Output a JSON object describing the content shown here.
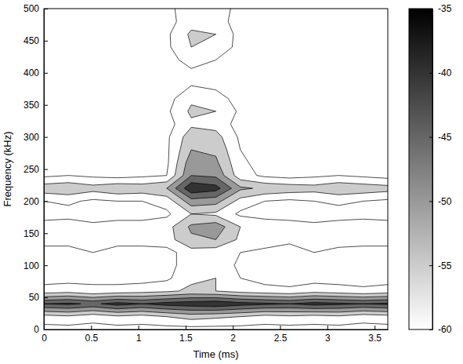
{
  "chart_data": {
    "type": "contour",
    "x_label": "Time (ms)",
    "y_label": "Frequency (kHz)",
    "x": [
      0,
      0.26,
      0.52,
      0.78,
      1.04,
      1.3,
      1.56,
      1.82,
      2.08,
      2.34,
      2.6,
      2.86,
      3.12,
      3.38,
      3.64
    ],
    "y": [
      0,
      20,
      40,
      60,
      80,
      100,
      120,
      140,
      160,
      180,
      200,
      220,
      240,
      260,
      280,
      300,
      320,
      340,
      360,
      380,
      400,
      420,
      440,
      460,
      480,
      500
    ],
    "values": [
      [
        -62,
        -62,
        -62,
        -62,
        -62,
        -62,
        -62,
        -62,
        -62,
        -62,
        -62,
        -62,
        -62,
        -62,
        -62
      ],
      [
        -57,
        -56,
        -58,
        -56,
        -57,
        -55,
        -53,
        -54,
        -55,
        -57,
        -56,
        -57,
        -56,
        -58,
        -57
      ],
      [
        -40,
        -39,
        -41,
        -38,
        -40,
        -38,
        -37,
        -36,
        -38,
        -39,
        -40,
        -38,
        -39,
        -40,
        -39
      ],
      [
        -58,
        -57,
        -59,
        -58,
        -57,
        -56,
        -54,
        -55,
        -57,
        -58,
        -59,
        -57,
        -58,
        -59,
        -58
      ],
      [
        -62,
        -62,
        -61,
        -62,
        -62,
        -61,
        -56,
        -55,
        -60,
        -62,
        -62,
        -62,
        -62,
        -62,
        -62
      ],
      [
        -62,
        -62,
        -62,
        -62,
        -62,
        -62,
        -57,
        -57,
        -61,
        -62,
        -62,
        -62,
        -62,
        -62,
        -62
      ],
      [
        -61,
        -62,
        -60,
        -62,
        -61,
        -62,
        -57,
        -58,
        -60,
        -61,
        -62,
        -60,
        -62,
        -61,
        -62
      ],
      [
        -59,
        -58,
        -60,
        -58,
        -59,
        -57,
        -51,
        -50,
        -56,
        -58,
        -59,
        -58,
        -57,
        -59,
        -58
      ],
      [
        -58,
        -57,
        -59,
        -58,
        -58,
        -57,
        -49,
        -47,
        -55,
        -57,
        -58,
        -59,
        -58,
        -57,
        -58
      ],
      [
        -62,
        -62,
        -62,
        -62,
        -62,
        -61,
        -55,
        -56,
        -61,
        -62,
        -62,
        -62,
        -62,
        -62,
        -62
      ],
      [
        -60,
        -59,
        -61,
        -60,
        -60,
        -58,
        -47,
        -48,
        -57,
        -60,
        -61,
        -60,
        -59,
        -60,
        -61
      ],
      [
        -52,
        -51,
        -53,
        -51,
        -52,
        -50,
        -36,
        -38,
        -49,
        -51,
        -52,
        -53,
        -51,
        -52,
        -53
      ],
      [
        -61,
        -60,
        -61,
        -62,
        -61,
        -60,
        -45,
        -46,
        -58,
        -61,
        -62,
        -61,
        -60,
        -61,
        -62
      ],
      [
        -62,
        -62,
        -62,
        -62,
        -62,
        -61,
        -47,
        -49,
        -59,
        -62,
        -62,
        -62,
        -62,
        -62,
        -62
      ],
      [
        -62,
        -62,
        -62,
        -62,
        -62,
        -61,
        -50,
        -51,
        -60,
        -62,
        -62,
        -62,
        -62,
        -62,
        -62
      ],
      [
        -62,
        -62,
        -62,
        -62,
        -62,
        -61,
        -52,
        -53,
        -61,
        -62,
        -62,
        -62,
        -62,
        -62,
        -62
      ],
      [
        -62,
        -62,
        -62,
        -62,
        -62,
        -62,
        -56,
        -57,
        -62,
        -62,
        -62,
        -62,
        -62,
        -62,
        -62
      ],
      [
        -62,
        -62,
        -62,
        -62,
        -62,
        -61,
        -54,
        -55,
        -61,
        -62,
        -62,
        -62,
        -62,
        -62,
        -62
      ],
      [
        -62,
        -62,
        -62,
        -62,
        -62,
        -62,
        -56,
        -58,
        -62,
        -62,
        -62,
        -62,
        -62,
        -62,
        -62
      ],
      [
        -62,
        -62,
        -62,
        -62,
        -62,
        -62,
        -60,
        -61,
        -62,
        -62,
        -62,
        -62,
        -62,
        -62,
        -62
      ],
      [
        -62,
        -62,
        -62,
        -62,
        -62,
        -62,
        -61,
        -62,
        -62,
        -62,
        -62,
        -62,
        -62,
        -62,
        -62
      ],
      [
        -62,
        -62,
        -62,
        -62,
        -62,
        -62,
        -58,
        -60,
        -62,
        -62,
        -62,
        -62,
        -62,
        -62,
        -62
      ],
      [
        -62,
        -62,
        -62,
        -62,
        -62,
        -61,
        -55,
        -56,
        -62,
        -62,
        -62,
        -62,
        -62,
        -62,
        -62
      ],
      [
        -62,
        -62,
        -62,
        -62,
        -62,
        -61,
        -54,
        -55,
        -62,
        -62,
        -62,
        -62,
        -62,
        -62,
        -62
      ],
      [
        -62,
        -62,
        -62,
        -62,
        -62,
        -62,
        -57,
        -58,
        -62,
        -62,
        -62,
        -62,
        -62,
        -62,
        -62
      ],
      [
        -62,
        -62,
        -62,
        -62,
        -62,
        -62,
        -56,
        -57,
        -62,
        -62,
        -62,
        -62,
        -62,
        -62,
        -62
      ]
    ],
    "xlim": [
      0,
      3.64
    ],
    "ylim": [
      0,
      500
    ],
    "xticks": [
      0,
      0.5,
      1,
      1.5,
      2,
      2.5,
      3,
      3.5
    ],
    "yticks": [
      0,
      50,
      100,
      150,
      200,
      250,
      300,
      350,
      400,
      450,
      500
    ],
    "color_range": [
      -60,
      -35
    ],
    "color_ticks": [
      -60,
      -55,
      -50,
      -45,
      -40,
      -35
    ],
    "color": "gray"
  }
}
